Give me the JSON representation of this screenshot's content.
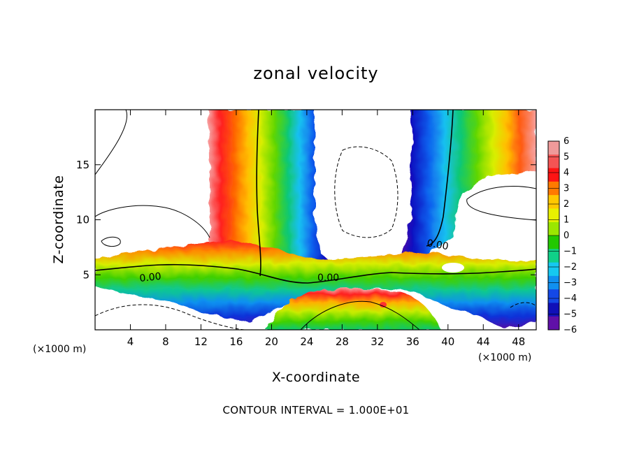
{
  "chart_data": {
    "type": "heatmap",
    "title": "zonal velocity",
    "xlabel": "X-coordinate",
    "ylabel": "Z-coordinate",
    "x_unit": "(×1000 m)",
    "z_unit": "(×1000 m)",
    "xlim": [
      0,
      50
    ],
    "ylim": [
      0,
      20
    ],
    "x_ticks": [
      "4",
      "8",
      "12",
      "16",
      "20",
      "24",
      "28",
      "32",
      "36",
      "40",
      "44",
      "48"
    ],
    "y_ticks": [
      "5",
      "10",
      "15"
    ],
    "colorbar": {
      "levels": [
        "6",
        "5",
        "4",
        "3",
        "2",
        "1",
        "0",
        "−1",
        "−2",
        "−3",
        "−4",
        "−5",
        "−6"
      ],
      "colors": [
        "#ef9a9a",
        "#f45454",
        "#ff1414",
        "#ff7a00",
        "#ffc800",
        "#e8f000",
        "#9be600",
        "#22c800",
        "#10d088",
        "#16c8f0",
        "#1090f0",
        "#1448e6",
        "#1010b8",
        "#6010a8"
      ]
    },
    "contour_labels": [
      "0.00",
      "0.00",
      "0.00"
    ],
    "footer": "CONTOUR INTERVAL = 1.000E+01"
  }
}
